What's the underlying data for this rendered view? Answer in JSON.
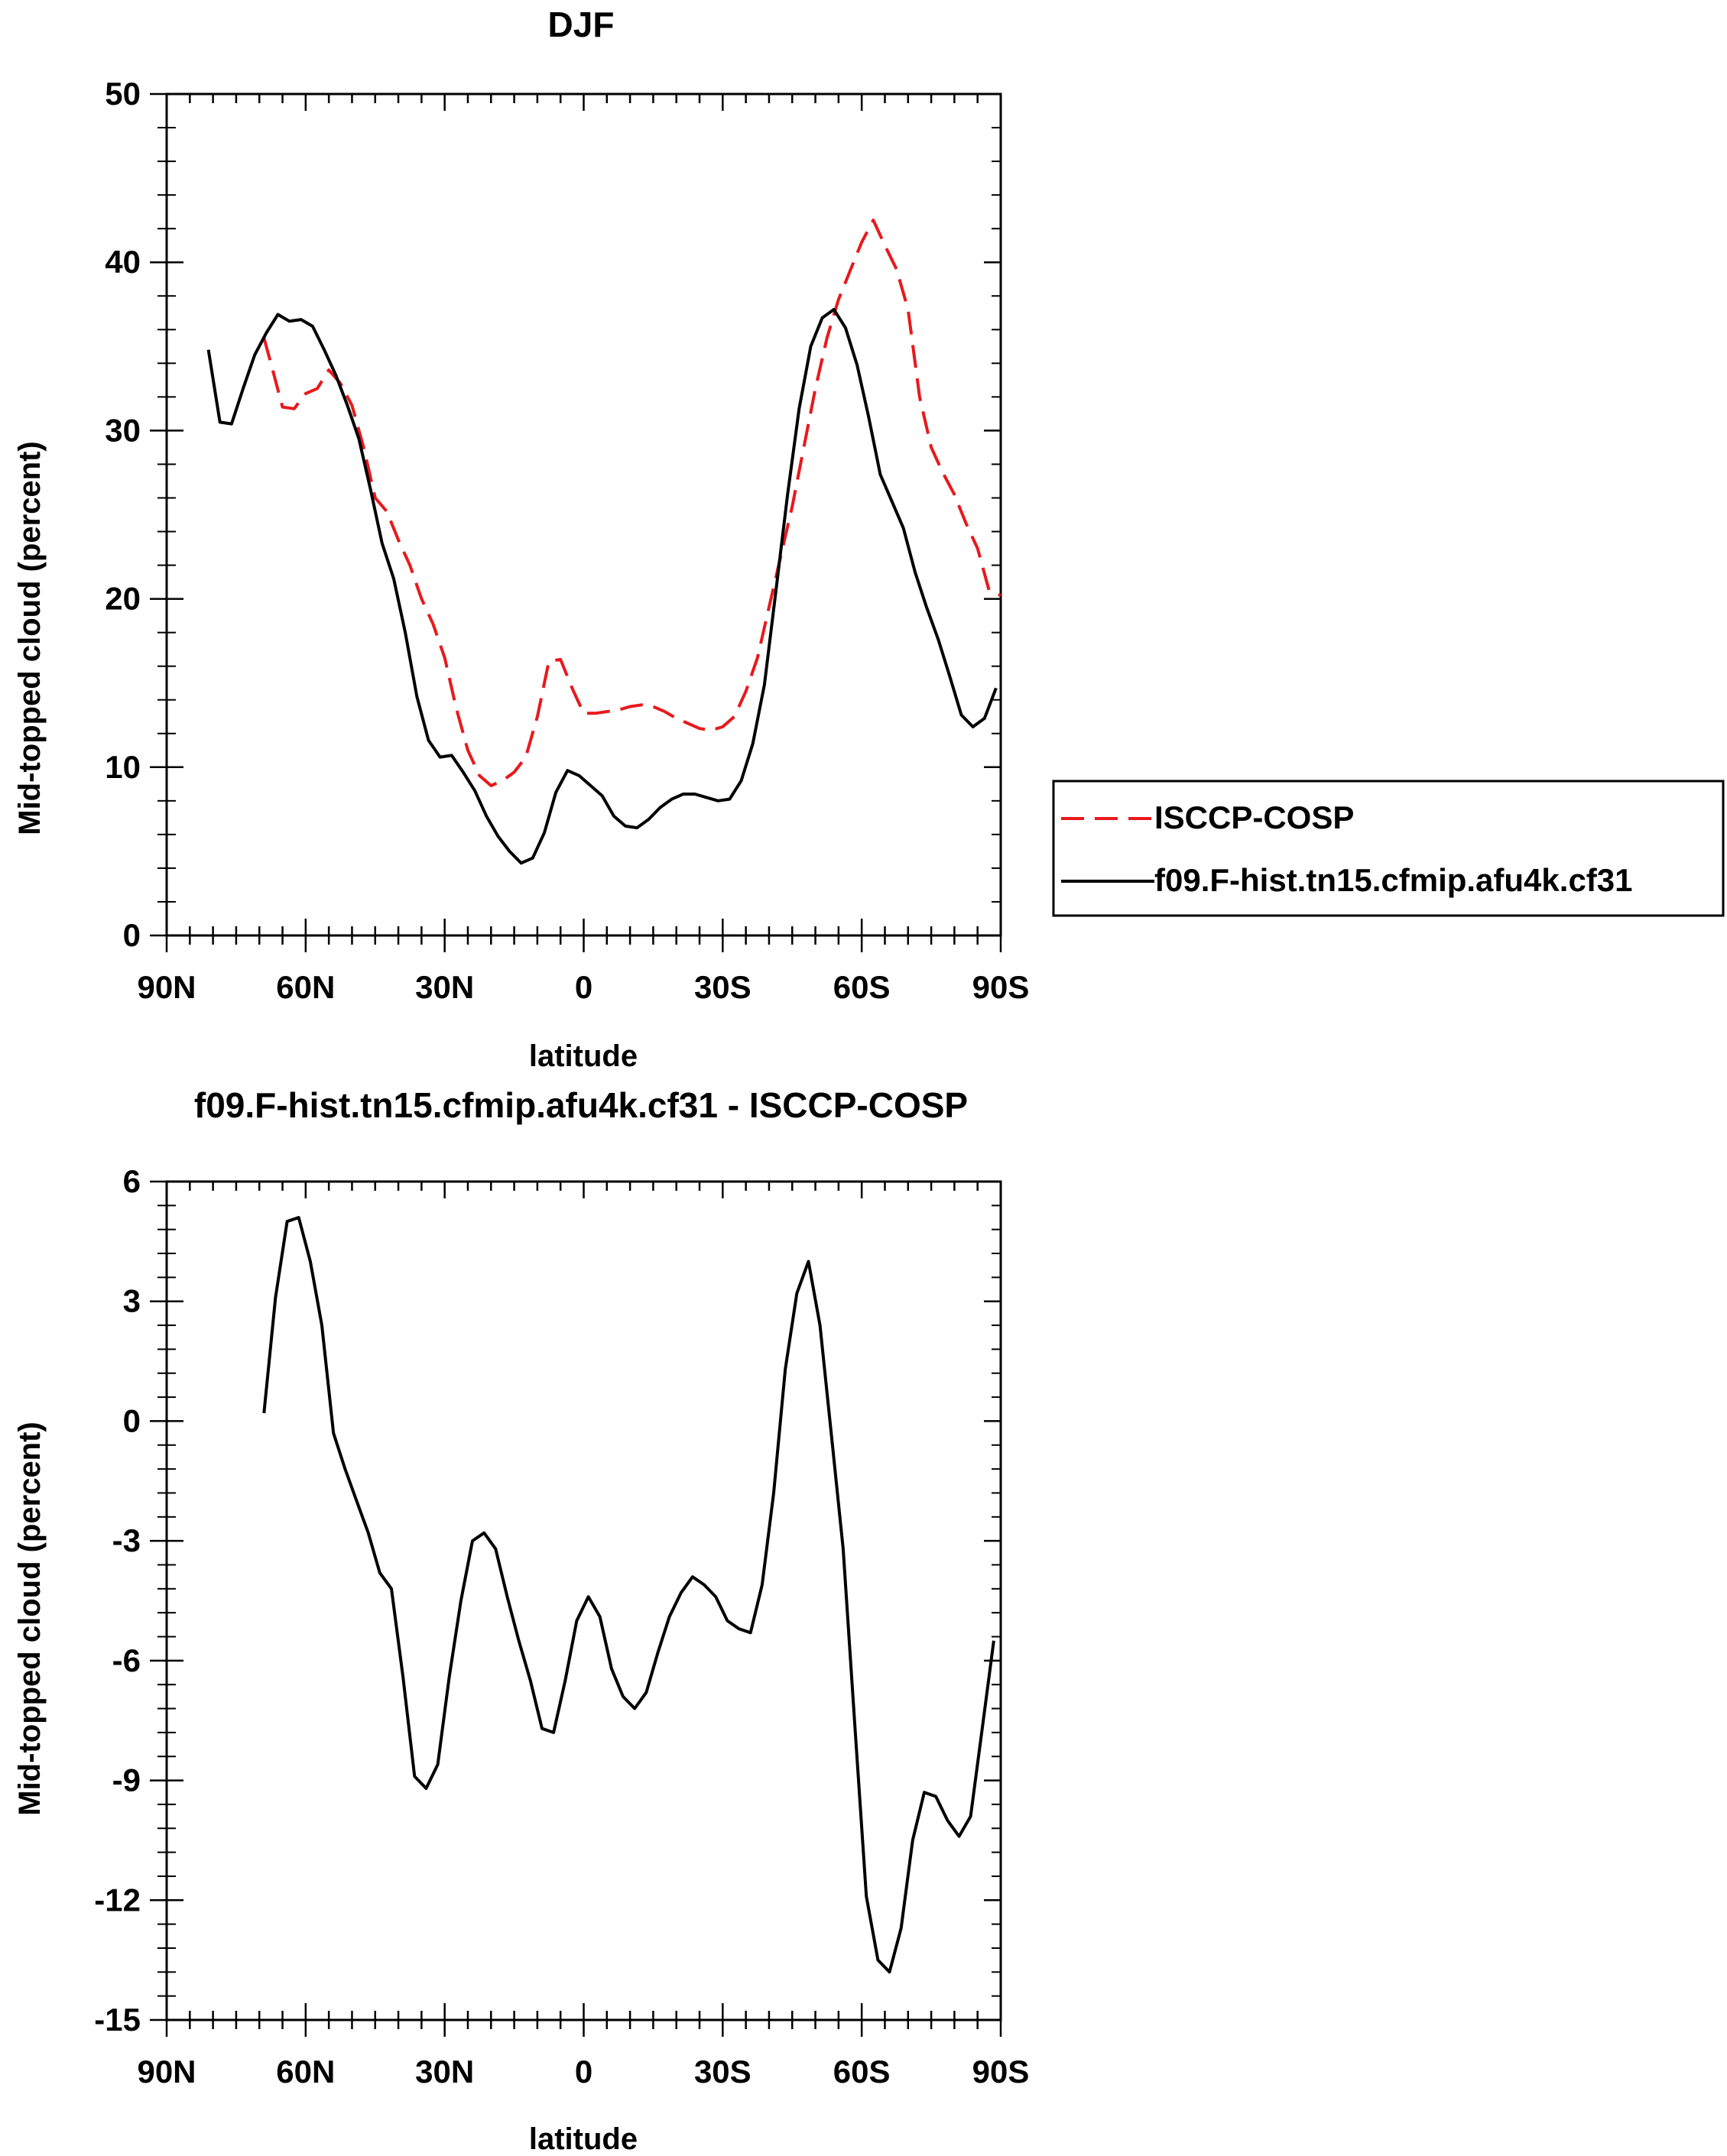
{
  "chart_data": [
    {
      "type": "line",
      "title": "DJF",
      "xlabel": "latitude",
      "ylabel": "Mid-topped cloud (percent)",
      "xlim": [
        -90,
        90
      ],
      "ylim": [
        0,
        50
      ],
      "x_ticks": [
        {
          "value": -90,
          "label": "90N"
        },
        {
          "value": -60,
          "label": "60N"
        },
        {
          "value": -30,
          "label": "30N"
        },
        {
          "value": 0,
          "label": "0"
        },
        {
          "value": 30,
          "label": "30S"
        },
        {
          "value": 60,
          "label": "60S"
        },
        {
          "value": 90,
          "label": "90S"
        }
      ],
      "y_ticks": [
        {
          "value": 0,
          "label": "0"
        },
        {
          "value": 10,
          "label": "10"
        },
        {
          "value": 20,
          "label": "20"
        },
        {
          "value": 30,
          "label": "30"
        },
        {
          "value": 40,
          "label": "40"
        },
        {
          "value": 50,
          "label": "50"
        }
      ],
      "grid": false,
      "legend": {
        "placement": "right",
        "entries": [
          "ISCCP-COSP",
          "f09.F-hist.tn15.cfmip.afu4k.cf31"
        ]
      },
      "series": [
        {
          "name": "ISCCP-COSP",
          "color": "#e8191c",
          "dash": true,
          "x": [
            -69,
            -67.5,
            -65,
            -62.5,
            -60,
            -57.5,
            -55,
            -52.5,
            -50,
            -47.5,
            -45,
            -42.5,
            -40,
            -37.5,
            -35,
            -32.5,
            -30,
            -27.5,
            -25,
            -22.5,
            -20,
            -17.5,
            -15,
            -12.5,
            -10,
            -7.5,
            -5,
            -2.5,
            0,
            2.5,
            5,
            7.5,
            10,
            12.5,
            15,
            17.5,
            20,
            22.5,
            25,
            27.5,
            30,
            32.5,
            35,
            37.5,
            40,
            42.5,
            45,
            47.5,
            50,
            52.5,
            55,
            57.5,
            60,
            62.5,
            65,
            67.5,
            70,
            72.5,
            75,
            77.5,
            80,
            82.5,
            85,
            87.5,
            90
          ],
          "y": [
            35.5,
            34,
            31.4,
            31.3,
            32.2,
            32.5,
            33.6,
            32.8,
            31.5,
            29,
            26,
            25.2,
            23.5,
            22,
            20,
            18.5,
            16.5,
            13.5,
            11,
            9.5,
            8.9,
            9.2,
            9.7,
            10.6,
            13,
            16.3,
            16.4,
            14.7,
            13.2,
            13.2,
            13.3,
            13.4,
            13.6,
            13.7,
            13.6,
            13.3,
            12.9,
            12.6,
            12.3,
            12.2,
            12.4,
            13,
            14.5,
            16.5,
            19.5,
            22.5,
            25.5,
            29,
            32.5,
            35.5,
            37.8,
            39.5,
            41.2,
            42.5,
            41,
            39.6,
            37.2,
            32,
            29,
            27.5,
            26.2,
            24.5,
            23,
            20.5,
            20.2
          ]
        },
        {
          "name": "f09.F-hist.tn15.cfmip.afu4k.cf31",
          "color": "#000000",
          "dash": false,
          "x": [
            -81,
            -78.5,
            -76,
            -73.5,
            -71,
            -68.5,
            -66,
            -63.5,
            -61,
            -58.5,
            -56,
            -53.5,
            -51,
            -48.5,
            -46,
            -43.5,
            -41,
            -38.5,
            -36,
            -33.5,
            -31,
            -28.5,
            -26,
            -23.5,
            -21,
            -18.5,
            -16,
            -13.5,
            -11,
            -8.5,
            -6,
            -3.5,
            -1,
            1.5,
            4,
            6.5,
            9,
            11.5,
            14,
            16.5,
            19,
            21.5,
            24,
            26.5,
            29,
            31.5,
            34,
            36.5,
            39,
            41.5,
            44,
            46.5,
            49,
            51.5,
            54,
            56.5,
            59,
            61.5,
            64,
            66.5,
            69,
            71.5,
            74,
            76.5,
            79,
            81.5,
            84,
            86.5,
            89
          ],
          "y": [
            34.8,
            30.5,
            30.4,
            32.5,
            34.5,
            35.8,
            36.9,
            36.5,
            36.6,
            36.2,
            34.8,
            33.3,
            31.5,
            29.5,
            26.5,
            23.3,
            21.2,
            18,
            14.2,
            11.6,
            10.6,
            10.7,
            9.7,
            8.6,
            7.1,
            5.9,
            5,
            4.3,
            4.6,
            6.1,
            8.5,
            9.8,
            9.5,
            8.9,
            8.3,
            7.1,
            6.5,
            6.4,
            6.9,
            7.6,
            8.1,
            8.4,
            8.4,
            8.2,
            8,
            8.1,
            9.2,
            11.4,
            14.9,
            20.5,
            26.2,
            31.3,
            35,
            36.7,
            37.2,
            36.1,
            33.9,
            30.8,
            27.4,
            25.8,
            24.2,
            21.6,
            19.5,
            17.6,
            15.4,
            13.1,
            12.4,
            12.9,
            14.7
          ]
        }
      ]
    },
    {
      "type": "line",
      "title": "f09.F-hist.tn15.cfmip.afu4k.cf31 - ISCCP-COSP",
      "xlabel": "latitude",
      "ylabel": "Mid-topped cloud (percent)",
      "xlim": [
        -90,
        90
      ],
      "ylim": [
        -15,
        6
      ],
      "x_ticks": [
        {
          "value": -90,
          "label": "90N"
        },
        {
          "value": -60,
          "label": "60N"
        },
        {
          "value": -30,
          "label": "30N"
        },
        {
          "value": 0,
          "label": "0"
        },
        {
          "value": 30,
          "label": "30S"
        },
        {
          "value": 60,
          "label": "60S"
        },
        {
          "value": 90,
          "label": "90S"
        }
      ],
      "y_ticks": [
        {
          "value": -15,
          "label": "-15"
        },
        {
          "value": -12,
          "label": "-12"
        },
        {
          "value": -9,
          "label": "-9"
        },
        {
          "value": -6,
          "label": "-6"
        },
        {
          "value": -3,
          "label": "-3"
        },
        {
          "value": 0,
          "label": "0"
        },
        {
          "value": 3,
          "label": "3"
        },
        {
          "value": 6,
          "label": "6"
        }
      ],
      "grid": false,
      "series": [
        {
          "color": "#000000",
          "dash": false,
          "x": [
            -69,
            -66.5,
            -64,
            -61.5,
            -59,
            -56.5,
            -54,
            -51.5,
            -49,
            -46.5,
            -44,
            -41.5,
            -39,
            -36.5,
            -34,
            -31.5,
            -29,
            -26.5,
            -24,
            -21.5,
            -19,
            -16.5,
            -14,
            -11.5,
            -9,
            -6.5,
            -4,
            -1.5,
            1,
            3.5,
            6,
            8.5,
            11,
            13.5,
            16,
            18.5,
            21,
            23.5,
            26,
            28.5,
            31,
            33.5,
            36,
            38.5,
            41,
            43.5,
            46,
            48.5,
            51,
            53.5,
            56,
            58.5,
            61,
            63.5,
            66,
            68.5,
            71,
            73.5,
            76,
            78.5,
            81,
            83.5,
            86,
            88.5
          ],
          "y": [
            0.2,
            3.1,
            5,
            5.1,
            4,
            2.4,
            -0.3,
            -1.2,
            -2,
            -2.8,
            -3.8,
            -4.2,
            -6.4,
            -8.9,
            -9.2,
            -8.6,
            -6.4,
            -4.5,
            -3,
            -2.8,
            -3.2,
            -4.4,
            -5.5,
            -6.5,
            -7.7,
            -7.8,
            -6.5,
            -5,
            -4.4,
            -4.9,
            -6.2,
            -6.9,
            -7.2,
            -6.8,
            -5.8,
            -4.9,
            -4.3,
            -3.9,
            -4.1,
            -4.4,
            -5,
            -5.2,
            -5.3,
            -4.1,
            -1.8,
            1.3,
            3.2,
            4,
            2.4,
            -0.4,
            -3.2,
            -7.6,
            -11.9,
            -13.5,
            -13.8,
            -12.7,
            -10.5,
            -9.3,
            -9.4,
            -10,
            -10.4,
            -9.9,
            -7.7,
            -5.5
          ]
        }
      ]
    }
  ]
}
